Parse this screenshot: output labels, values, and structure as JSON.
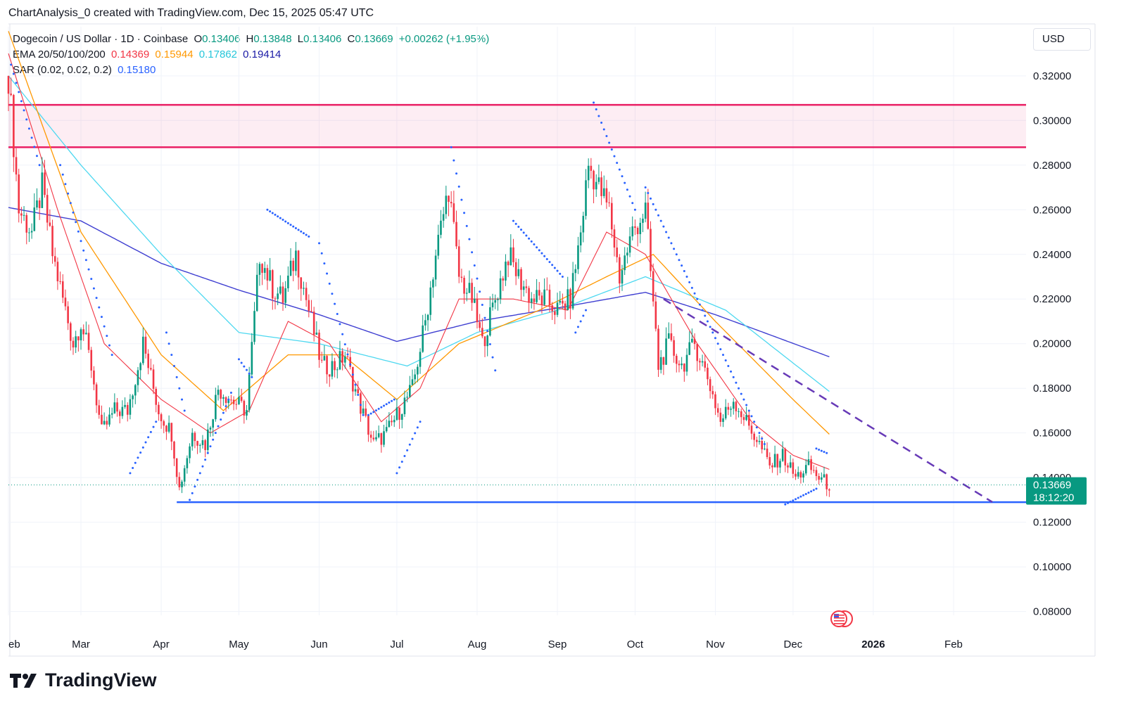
{
  "header": {
    "author_line": "ChartAnalysis_0 created with TradingView.com, Dec 15, 2025 05:47 UTC"
  },
  "legend": {
    "symbol": "Dogecoin / US Dollar · 1D · Coinbase",
    "open_label": "O",
    "open": "0.13406",
    "high_label": "H",
    "high": "0.13848",
    "low_label": "L",
    "low": "0.13406",
    "close_label": "C",
    "close": "0.13669",
    "change": "+0.00262 (+1.95%)",
    "ema_label": "EMA 20/50/100/200",
    "ema20": "0.14369",
    "ema50": "0.15944",
    "ema100": "0.17862",
    "ema200": "0.19414",
    "sar_label": "SAR (0.02, 0.02, 0.2)",
    "sar": "0.15180"
  },
  "currency": "USD",
  "price_tag": {
    "price": "0.13669",
    "countdown": "18:12:20"
  },
  "brand": "TradingView",
  "colors": {
    "up": "#089981",
    "down": "#f23645",
    "ema20": "#f23645",
    "ema50": "#ff9800",
    "ema100": "#4dd8f0",
    "ema200": "#3f3fd1",
    "sar": "#2962ff",
    "resistance": "#e91e63",
    "support": "#2962ff",
    "trendline": "#673ab7"
  },
  "chart_data": {
    "type": "candlestick",
    "symbol": "DOGE/USD",
    "timeframe": "1D",
    "yaxis_ticks": [
      0.08,
      0.1,
      0.12,
      0.14,
      0.16,
      0.18,
      0.2,
      0.22,
      0.24,
      0.26,
      0.28,
      0.3,
      0.32
    ],
    "xaxis_ticks": [
      "eb",
      "Mar",
      "Apr",
      "May",
      "Jun",
      "Jul",
      "Aug",
      "Sep",
      "Oct",
      "Nov",
      "Dec",
      "2026",
      "Feb"
    ],
    "ylim": [
      0.072,
      0.342
    ],
    "x_range": [
      "2025-02-01",
      "2026-03-01"
    ],
    "resistance_zone": [
      0.288,
      0.307
    ],
    "support_level": 0.129,
    "support_start": "2025-04-07",
    "trendline": {
      "start": [
        "2025-10-12",
        0.22
      ],
      "end": [
        "2026-02-16",
        0.129
      ]
    },
    "close_price": 0.13669,
    "price_path": [
      [
        "2025-02-01",
        0.32
      ],
      [
        "2025-02-05",
        0.26
      ],
      [
        "2025-02-10",
        0.25
      ],
      [
        "2025-02-14",
        0.27
      ],
      [
        "2025-02-18",
        0.24
      ],
      [
        "2025-02-22",
        0.22
      ],
      [
        "2025-02-26",
        0.2
      ],
      [
        "2025-03-01",
        0.21
      ],
      [
        "2025-03-05",
        0.19
      ],
      [
        "2025-03-09",
        0.16
      ],
      [
        "2025-03-14",
        0.17
      ],
      [
        "2025-03-19",
        0.17
      ],
      [
        "2025-03-25",
        0.2
      ],
      [
        "2025-03-31",
        0.17
      ],
      [
        "2025-04-05",
        0.16
      ],
      [
        "2025-04-08",
        0.135
      ],
      [
        "2025-04-13",
        0.16
      ],
      [
        "2025-04-18",
        0.155
      ],
      [
        "2025-04-23",
        0.18
      ],
      [
        "2025-04-28",
        0.175
      ],
      [
        "2025-05-04",
        0.17
      ],
      [
        "2025-05-09",
        0.24
      ],
      [
        "2025-05-14",
        0.225
      ],
      [
        "2025-05-18",
        0.22
      ],
      [
        "2025-05-23",
        0.24
      ],
      [
        "2025-05-28",
        0.215
      ],
      [
        "2025-06-02",
        0.19
      ],
      [
        "2025-06-07",
        0.19
      ],
      [
        "2025-06-11",
        0.195
      ],
      [
        "2025-06-16",
        0.175
      ],
      [
        "2025-06-22",
        0.155
      ],
      [
        "2025-06-27",
        0.16
      ],
      [
        "2025-07-02",
        0.17
      ],
      [
        "2025-07-07",
        0.18
      ],
      [
        "2025-07-12",
        0.21
      ],
      [
        "2025-07-16",
        0.24
      ],
      [
        "2025-07-21",
        0.27
      ],
      [
        "2025-07-25",
        0.23
      ],
      [
        "2025-07-30",
        0.22
      ],
      [
        "2025-08-03",
        0.2
      ],
      [
        "2025-08-08",
        0.22
      ],
      [
        "2025-08-13",
        0.24
      ],
      [
        "2025-08-17",
        0.23
      ],
      [
        "2025-08-22",
        0.22
      ],
      [
        "2025-08-27",
        0.22
      ],
      [
        "2025-09-01",
        0.215
      ],
      [
        "2025-09-06",
        0.22
      ],
      [
        "2025-09-10",
        0.25
      ],
      [
        "2025-09-13",
        0.28
      ],
      [
        "2025-09-17",
        0.27
      ],
      [
        "2025-09-21",
        0.26
      ],
      [
        "2025-09-25",
        0.23
      ],
      [
        "2025-09-30",
        0.25
      ],
      [
        "2025-10-05",
        0.26
      ],
      [
        "2025-10-10",
        0.19
      ],
      [
        "2025-10-14",
        0.2
      ],
      [
        "2025-10-19",
        0.19
      ],
      [
        "2025-10-24",
        0.2
      ],
      [
        "2025-10-29",
        0.185
      ],
      [
        "2025-11-03",
        0.165
      ],
      [
        "2025-11-08",
        0.175
      ],
      [
        "2025-11-13",
        0.165
      ],
      [
        "2025-11-18",
        0.155
      ],
      [
        "2025-11-22",
        0.145
      ],
      [
        "2025-11-27",
        0.15
      ],
      [
        "2025-12-02",
        0.14
      ],
      [
        "2025-12-07",
        0.145
      ],
      [
        "2025-12-11",
        0.14
      ],
      [
        "2025-12-15",
        0.13669
      ]
    ],
    "ema20_path": [
      [
        "2025-02-01",
        0.33
      ],
      [
        "2025-02-20",
        0.26
      ],
      [
        "2025-03-10",
        0.2
      ],
      [
        "2025-04-01",
        0.175
      ],
      [
        "2025-04-20",
        0.16
      ],
      [
        "2025-05-05",
        0.17
      ],
      [
        "2025-05-20",
        0.21
      ],
      [
        "2025-06-05",
        0.2
      ],
      [
        "2025-06-25",
        0.165
      ],
      [
        "2025-07-10",
        0.18
      ],
      [
        "2025-07-25",
        0.22
      ],
      [
        "2025-08-15",
        0.22
      ],
      [
        "2025-09-05",
        0.215
      ],
      [
        "2025-09-20",
        0.25
      ],
      [
        "2025-10-05",
        0.24
      ],
      [
        "2025-10-25",
        0.2
      ],
      [
        "2025-11-15",
        0.165
      ],
      [
        "2025-12-01",
        0.15
      ],
      [
        "2025-12-15",
        0.14369
      ]
    ],
    "ema50_path": [
      [
        "2025-02-01",
        0.34
      ],
      [
        "2025-03-01",
        0.25
      ],
      [
        "2025-04-01",
        0.195
      ],
      [
        "2025-04-25",
        0.17
      ],
      [
        "2025-05-20",
        0.195
      ],
      [
        "2025-06-10",
        0.195
      ],
      [
        "2025-07-01",
        0.175
      ],
      [
        "2025-07-25",
        0.2
      ],
      [
        "2025-08-25",
        0.215
      ],
      [
        "2025-09-20",
        0.23
      ],
      [
        "2025-10-08",
        0.24
      ],
      [
        "2025-11-01",
        0.21
      ],
      [
        "2025-12-01",
        0.175
      ],
      [
        "2025-12-15",
        0.15944
      ]
    ],
    "ema100_path": [
      [
        "2025-02-01",
        0.32
      ],
      [
        "2025-03-01",
        0.28
      ],
      [
        "2025-04-01",
        0.24
      ],
      [
        "2025-05-01",
        0.205
      ],
      [
        "2025-06-01",
        0.2
      ],
      [
        "2025-07-05",
        0.19
      ],
      [
        "2025-08-01",
        0.205
      ],
      [
        "2025-09-01",
        0.215
      ],
      [
        "2025-10-05",
        0.23
      ],
      [
        "2025-11-05",
        0.215
      ],
      [
        "2025-12-15",
        0.17862
      ]
    ],
    "ema200_path": [
      [
        "2025-02-01",
        0.261
      ],
      [
        "2025-03-01",
        0.255
      ],
      [
        "2025-04-01",
        0.236
      ],
      [
        "2025-05-01",
        0.224
      ],
      [
        "2025-06-01",
        0.213
      ],
      [
        "2025-07-01",
        0.201
      ],
      [
        "2025-08-01",
        0.21
      ],
      [
        "2025-09-01",
        0.216
      ],
      [
        "2025-10-05",
        0.223
      ],
      [
        "2025-11-01",
        0.213
      ],
      [
        "2025-12-15",
        0.19414
      ]
    ],
    "sar_path": [
      [
        "2025-02-02",
        0.325
      ],
      [
        "2025-02-13",
        0.28
      ],
      [
        "2025-02-21",
        0.28
      ],
      [
        "2025-03-13",
        0.195
      ],
      [
        "2025-03-20",
        0.142
      ],
      [
        "2025-03-30",
        0.165
      ],
      [
        "2025-04-03",
        0.205
      ],
      [
        "2025-04-10",
        0.17
      ],
      [
        "2025-04-12",
        0.13
      ],
      [
        "2025-04-28",
        0.178
      ],
      [
        "2025-05-01",
        0.193
      ],
      [
        "2025-05-06",
        0.185
      ],
      [
        "2025-05-12",
        0.26
      ],
      [
        "2025-05-28",
        0.248
      ],
      [
        "2025-06-01",
        0.245
      ],
      [
        "2025-06-18",
        0.168
      ],
      [
        "2025-06-20",
        0.168
      ],
      [
        "2025-06-30",
        0.175
      ],
      [
        "2025-07-01",
        0.142
      ],
      [
        "2025-07-10",
        0.165
      ],
      [
        "2025-07-22",
        0.288
      ],
      [
        "2025-08-08",
        0.188
      ],
      [
        "2025-08-15",
        0.255
      ],
      [
        "2025-09-03",
        0.23
      ],
      [
        "2025-09-08",
        0.205
      ],
      [
        "2025-09-12",
        0.215
      ],
      [
        "2025-09-15",
        0.308
      ],
      [
        "2025-10-01",
        0.26
      ],
      [
        "2025-10-05",
        0.27
      ],
      [
        "2025-11-20",
        0.155
      ],
      [
        "2025-11-28",
        0.128
      ],
      [
        "2025-12-10",
        0.135
      ],
      [
        "2025-12-10",
        0.153
      ],
      [
        "2025-12-14",
        0.151
      ]
    ]
  }
}
